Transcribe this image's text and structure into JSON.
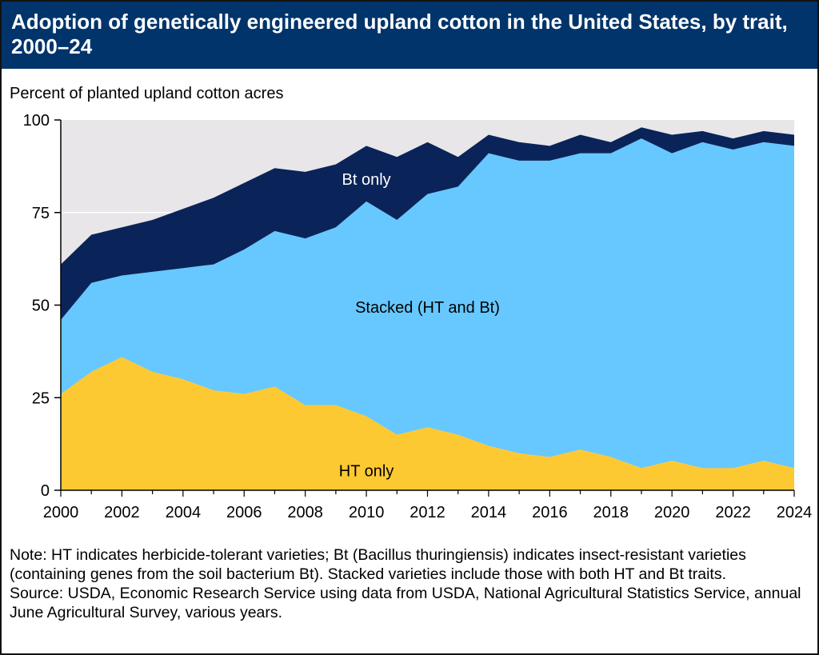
{
  "header": {
    "title": "Adoption of genetically engineered upland cotton in the United States, by trait, 2000–24"
  },
  "notes": {
    "note": "Note: HT indicates herbicide-tolerant varieties; Bt (Bacillus thuringiensis) indicates insect-resistant varieties (containing genes from the soil bacterium Bt). Stacked varieties include those with both HT and Bt traits.",
    "source": "Source: USDA, Economic Research Service using data from USDA, National Agricultural Statistics Service, annual June Agricultural Survey, various years."
  },
  "chart_data": {
    "type": "area",
    "stacked": true,
    "title": "Adoption of genetically engineered upland cotton in the United States, by trait, 2000–24",
    "ylabel": "Percent of planted upland cotton acres",
    "xlabel": "",
    "ylim": [
      0,
      100
    ],
    "xlim": [
      2000,
      2024
    ],
    "yticks": [
      0,
      25,
      50,
      75,
      100
    ],
    "xticks": [
      2000,
      2002,
      2004,
      2006,
      2008,
      2010,
      2012,
      2014,
      2016,
      2018,
      2020,
      2022,
      2024
    ],
    "grid": "horizontal",
    "x": [
      2000,
      2001,
      2002,
      2003,
      2004,
      2005,
      2006,
      2007,
      2008,
      2009,
      2010,
      2011,
      2012,
      2013,
      2014,
      2015,
      2016,
      2017,
      2018,
      2019,
      2020,
      2021,
      2022,
      2023,
      2024
    ],
    "series": [
      {
        "name": "HT only",
        "color": "#fdc933",
        "values": [
          26,
          32,
          36,
          32,
          30,
          27,
          26,
          28,
          23,
          23,
          20,
          15,
          17,
          15,
          12,
          10,
          9,
          11,
          9,
          6,
          8,
          6,
          6,
          8,
          6
        ]
      },
      {
        "name": "Stacked (HT and Bt)",
        "color": "#66c8ff",
        "values": [
          20,
          24,
          22,
          27,
          30,
          34,
          39,
          42,
          45,
          48,
          58,
          58,
          63,
          67,
          79,
          79,
          80,
          80,
          82,
          89,
          83,
          88,
          86,
          86,
          87
        ]
      },
      {
        "name": "Bt only",
        "color": "#0a2459",
        "values": [
          15,
          13,
          13,
          14,
          16,
          18,
          18,
          17,
          18,
          17,
          15,
          17,
          14,
          8,
          5,
          5,
          4,
          5,
          3,
          3,
          5,
          3,
          3,
          3,
          3
        ]
      }
    ],
    "plot_background": "#e8e6e8"
  }
}
